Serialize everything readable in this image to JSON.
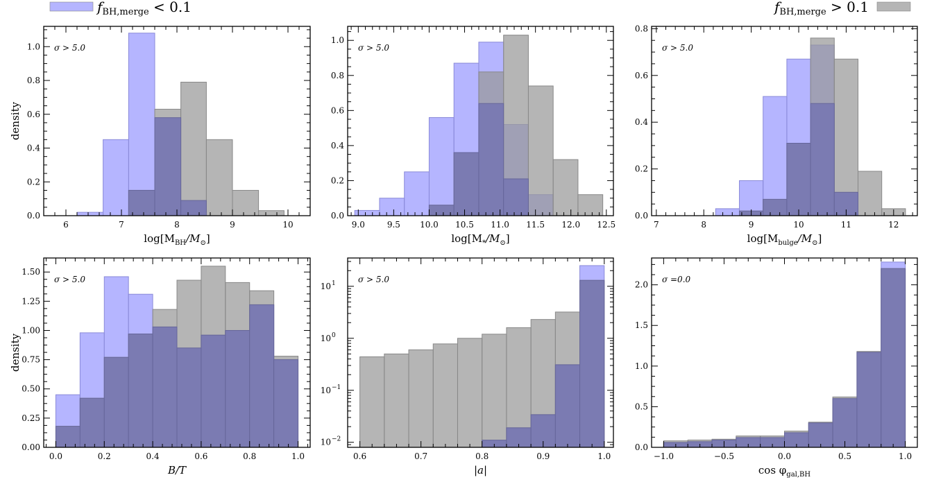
{
  "colors": {
    "blue": "#9999ff",
    "grey": "#999999",
    "blue_alpha": 0.72,
    "grey_alpha": 0.72
  },
  "legend": {
    "left": {
      "label": "f",
      "sub": "BH,merge",
      "rest": " < 0.1",
      "color": "#9999ff",
      "placement": "top-left"
    },
    "right": {
      "label": "f",
      "sub": "BH,merge",
      "rest": " > 0.1",
      "color": "#999999",
      "placement": "top-right"
    }
  },
  "chart_data": [
    {
      "type": "histogram",
      "xlabel": "log[M_BH/M_⊙]",
      "ylabel": "density",
      "annotation": "σ > 5.0",
      "xlim": [
        5.6,
        10.4
      ],
      "ylim": [
        0,
        1.12
      ],
      "yscale": "linear",
      "xticks": [
        6,
        7,
        8,
        9,
        10
      ],
      "xtick_labels": [
        "6",
        "7",
        "8",
        "9",
        "10"
      ],
      "yticks": [
        0,
        0.2,
        0.4,
        0.6,
        0.8,
        1.0
      ],
      "ytick_labels": [
        "0.0",
        "0.2",
        "0.4",
        "0.6",
        "0.8",
        "1.0"
      ],
      "series": [
        {
          "color": "blue",
          "edges": [
            6.2,
            6.67,
            7.13,
            7.6,
            8.07,
            8.53,
            9.0
          ],
          "values": [
            0.02,
            0.45,
            1.08,
            0.15,
            0.0,
            0.0
          ]
        },
        {
          "color": "grey",
          "edges": [
            6.67,
            7.13,
            7.6,
            8.07,
            8.53,
            9.0,
            9.47,
            9.93
          ],
          "values": [
            0.0,
            0.15,
            0.63,
            0.79,
            0.45,
            0.15,
            0.03
          ]
        },
        {
          "color": "overlap",
          "edges": [
            7.13,
            7.6,
            8.07,
            8.53
          ],
          "values": [
            0.15,
            0.58,
            0.09
          ]
        }
      ]
    },
    {
      "type": "histogram",
      "xlabel": "log[M_*/M_⊙]",
      "ylabel": "",
      "annotation": "σ > 5.0",
      "xlim": [
        8.85,
        12.6
      ],
      "ylim": [
        0,
        1.08
      ],
      "yscale": "linear",
      "xticks": [
        9.0,
        9.5,
        10.0,
        10.5,
        11.0,
        11.5,
        12.0,
        12.5
      ],
      "xtick_labels": [
        "9.0",
        "9.5",
        "10.0",
        "10.5",
        "11.0",
        "11.5",
        "12.0",
        "12.5"
      ],
      "yticks": [
        0,
        0.2,
        0.4,
        0.6,
        0.8,
        1.0
      ],
      "ytick_labels": [
        "0.0",
        "0.2",
        "0.4",
        "0.6",
        "0.8",
        "1.0"
      ],
      "series": [
        {
          "color": "blue",
          "edges": [
            8.95,
            9.3,
            9.65,
            10.0,
            10.35,
            10.7,
            11.05,
            11.4,
            11.75
          ],
          "values": [
            0.03,
            0.1,
            0.25,
            0.56,
            0.87,
            0.99,
            0.52,
            0.12
          ]
        },
        {
          "color": "grey",
          "edges": [
            9.3,
            9.65,
            10.0,
            10.35,
            10.7,
            11.05,
            11.4,
            11.75,
            12.1,
            12.45
          ],
          "values": [
            0.0,
            0.0,
            0.06,
            0.36,
            0.82,
            1.03,
            0.74,
            0.32,
            0.12,
            0.03
          ]
        },
        {
          "color": "overlap",
          "edges": [
            10.0,
            10.35,
            10.7,
            11.05,
            11.4
          ],
          "values": [
            0.06,
            0.36,
            0.64,
            0.21,
            0.01
          ]
        }
      ]
    },
    {
      "type": "histogram",
      "xlabel": "log[M_bulge/M_⊙]",
      "ylabel": "",
      "annotation": "σ > 5.0",
      "xlim": [
        6.9,
        12.5
      ],
      "ylim": [
        0,
        0.81
      ],
      "yscale": "linear",
      "xticks": [
        7,
        8,
        9,
        10,
        11,
        12
      ],
      "xtick_labels": [
        "7",
        "8",
        "9",
        "10",
        "11",
        "12"
      ],
      "yticks": [
        0,
        0.2,
        0.4,
        0.6,
        0.8
      ],
      "ytick_labels": [
        "0.0",
        "0.2",
        "0.4",
        "0.6",
        "0.8"
      ],
      "series": [
        {
          "color": "blue",
          "edges": [
            8.25,
            8.75,
            9.25,
            9.75,
            10.25,
            10.75,
            11.25
          ],
          "values": [
            0.03,
            0.15,
            0.51,
            0.67,
            0.73,
            0.1
          ]
        },
        {
          "color": "grey",
          "edges": [
            8.75,
            9.25,
            9.75,
            10.25,
            10.75,
            11.25,
            11.75,
            12.25
          ],
          "values": [
            0.02,
            0.07,
            0.31,
            0.76,
            0.67,
            0.19,
            0.03
          ]
        },
        {
          "color": "overlap",
          "edges": [
            8.75,
            9.25,
            9.75,
            10.25,
            10.75,
            11.25
          ],
          "values": [
            0.02,
            0.07,
            0.31,
            0.48,
            0.1
          ]
        }
      ]
    },
    {
      "type": "histogram",
      "xlabel": "B/T",
      "ylabel": "density",
      "annotation": "σ > 5.0",
      "xlim": [
        -0.05,
        1.05
      ],
      "ylim": [
        0,
        1.62
      ],
      "yscale": "linear",
      "xticks": [
        0.0,
        0.2,
        0.4,
        0.6,
        0.8,
        1.0
      ],
      "xtick_labels": [
        "0.0",
        "0.2",
        "0.4",
        "0.6",
        "0.8",
        "1.0"
      ],
      "yticks": [
        0,
        0.25,
        0.5,
        0.75,
        1.0,
        1.25,
        1.5
      ],
      "ytick_labels": [
        "0.00",
        "0.25",
        "0.50",
        "0.75",
        "1.00",
        "1.25",
        "1.50"
      ],
      "series": [
        {
          "color": "blue",
          "edges": [
            0,
            0.1,
            0.2,
            0.3,
            0.4,
            0.5,
            0.6,
            0.7,
            0.8,
            0.9,
            1.0
          ],
          "values": [
            0.45,
            0.98,
            1.46,
            1.31,
            1.03,
            0.85,
            0.96,
            1.0,
            1.22,
            0.75
          ]
        },
        {
          "color": "grey",
          "edges": [
            0,
            0.1,
            0.2,
            0.3,
            0.4,
            0.5,
            0.6,
            0.7,
            0.8,
            0.9,
            1.0
          ],
          "values": [
            0.18,
            0.42,
            0.77,
            0.97,
            1.18,
            1.43,
            1.55,
            1.41,
            1.34,
            0.78
          ]
        },
        {
          "color": "overlap",
          "edges": [
            0,
            0.1,
            0.2,
            0.3,
            0.4,
            0.5,
            0.6,
            0.7,
            0.8,
            0.9,
            1.0
          ],
          "values": [
            0.18,
            0.42,
            0.77,
            0.97,
            1.03,
            0.85,
            0.96,
            1.0,
            1.22,
            0.75
          ]
        }
      ]
    },
    {
      "type": "histogram",
      "xlabel": "|a|",
      "ylabel": "",
      "annotation": "σ > 5.0",
      "xlim": [
        0.58,
        1.015
      ],
      "ylim": [
        0.008,
        35
      ],
      "yscale": "log",
      "xticks": [
        0.6,
        0.7,
        0.8,
        0.9,
        1.0
      ],
      "xtick_labels": [
        "0.6",
        "0.7",
        "0.8",
        "0.9",
        "1.0"
      ],
      "yticks": [
        0.01,
        0.1,
        1,
        10
      ],
      "ytick_labels": [
        "10",
        "10",
        "10",
        "10"
      ],
      "ytick_exps": [
        "−2",
        "−1",
        "0",
        "1"
      ],
      "series": [
        {
          "color": "blue",
          "edges": [
            0.8,
            0.84,
            0.88,
            0.92,
            0.96,
            1.0
          ],
          "values": [
            0.011,
            0.019,
            0.034,
            0.31,
            25
          ]
        },
        {
          "color": "grey",
          "edges": [
            0.6,
            0.64,
            0.68,
            0.72,
            0.76,
            0.8,
            0.84,
            0.88,
            0.92,
            0.96,
            1.0
          ],
          "values": [
            0.44,
            0.5,
            0.6,
            0.78,
            1.0,
            1.2,
            1.6,
            2.3,
            3.2,
            13
          ]
        },
        {
          "color": "overlap",
          "edges": [
            0.8,
            0.84,
            0.88,
            0.92,
            0.96,
            1.0
          ],
          "values": [
            0.011,
            0.019,
            0.034,
            0.31,
            13
          ]
        }
      ]
    },
    {
      "type": "histogram",
      "xlabel": "cos φ_gal,BH",
      "ylabel": "",
      "annotation": "σ =0.0",
      "xlim": [
        -1.1,
        1.1
      ],
      "ylim": [
        0,
        2.33
      ],
      "yscale": "linear",
      "xticks": [
        -1.0,
        -0.5,
        0.0,
        0.5,
        1.0
      ],
      "xtick_labels": [
        "−1.0",
        "−0.5",
        "0.0",
        "0.5",
        "1.0"
      ],
      "yticks": [
        0,
        0.5,
        1.0,
        1.5,
        2.0
      ],
      "ytick_labels": [
        "0.0",
        "0.5",
        "1.0",
        "1.5",
        "2.0"
      ],
      "series": [
        {
          "color": "blue",
          "edges": [
            -1.0,
            -0.8,
            -0.6,
            -0.4,
            -0.2,
            0.0,
            0.2,
            0.4,
            0.6,
            0.8,
            1.0
          ],
          "values": [
            0.06,
            0.07,
            0.09,
            0.12,
            0.12,
            0.18,
            0.3,
            0.6,
            1.17,
            2.28
          ]
        },
        {
          "color": "grey",
          "edges": [
            -1.0,
            -0.8,
            -0.6,
            -0.4,
            -0.2,
            0.0,
            0.2,
            0.4,
            0.6,
            0.8,
            1.0
          ],
          "values": [
            0.08,
            0.09,
            0.1,
            0.14,
            0.14,
            0.2,
            0.31,
            0.62,
            1.18,
            2.2
          ]
        },
        {
          "color": "overlap",
          "edges": [
            -1.0,
            -0.8,
            -0.6,
            -0.4,
            -0.2,
            0.0,
            0.2,
            0.4,
            0.6,
            0.8,
            1.0
          ],
          "values": [
            0.06,
            0.07,
            0.09,
            0.12,
            0.12,
            0.18,
            0.3,
            0.6,
            1.17,
            2.2
          ]
        }
      ]
    }
  ]
}
